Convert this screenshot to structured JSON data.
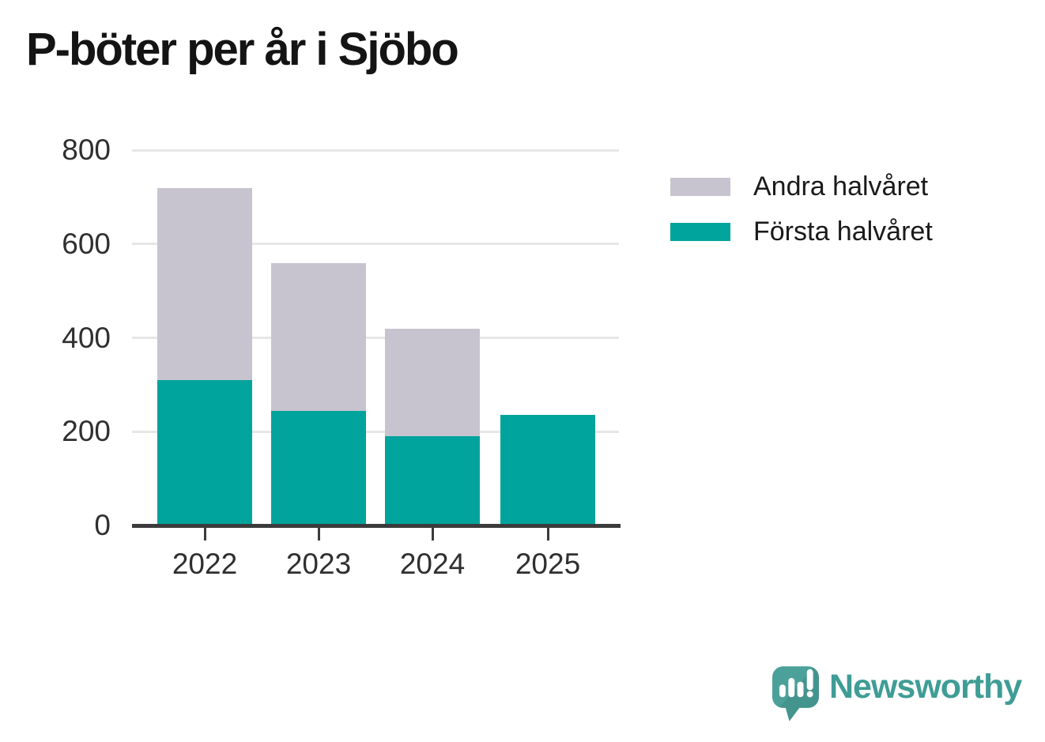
{
  "title": "P-böter per år i Sjöbo",
  "chart_data": {
    "type": "bar",
    "stacked": true,
    "title": "P-böter per år i Sjöbo",
    "categories": [
      "2022",
      "2023",
      "2024",
      "2025"
    ],
    "series": [
      {
        "name": "Första halvåret",
        "key": "forsta-halvaret",
        "color": "#00a49c",
        "values": [
          310,
          245,
          190,
          235
        ]
      },
      {
        "name": "Andra halvåret",
        "key": "andra-halvaret",
        "color": "#c7c4cf",
        "values": [
          410,
          315,
          230,
          0
        ]
      }
    ],
    "ylim": [
      0,
      800
    ],
    "yticks": [
      0,
      200,
      400,
      600,
      800
    ],
    "xlabel": "",
    "ylabel": "",
    "grid": true,
    "legend_position": "top-right"
  },
  "legend": {
    "items": [
      {
        "label": "Andra halvåret",
        "color": "#c7c4cf"
      },
      {
        "label": "Första halvåret",
        "color": "#00a49c"
      }
    ]
  },
  "brand": {
    "name": "Newsworthy",
    "color": "#3f9d96",
    "logo_icon": "speech-bubble-bar-chart-icon"
  },
  "colors": {
    "first_half": "#00a49c",
    "second_half": "#c7c4cf",
    "gridline": "#e8e6e9",
    "axis": "#3b3b3b",
    "text": "#2f2f2f",
    "background": "#ffffff"
  }
}
